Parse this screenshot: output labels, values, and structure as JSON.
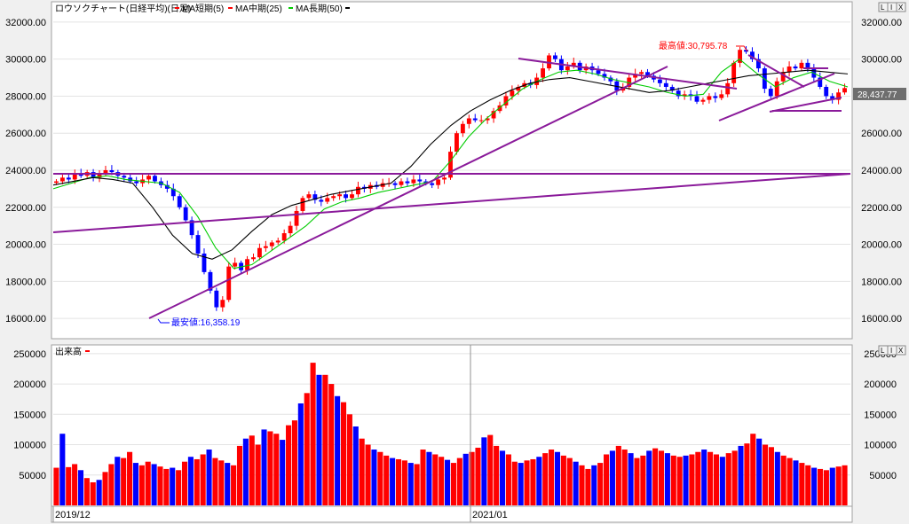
{
  "price_panel": {
    "title": "ロウソクチャート(日経平均)(日足)",
    "legend": [
      {
        "label": "MA短期(5)",
        "color": "#ff0000"
      },
      {
        "label": "MA中期(25)",
        "color": "#ff0000"
      },
      {
        "label": "MA長期(50)",
        "color": "#00cc00"
      },
      {
        "label": "",
        "color": "#000000"
      }
    ],
    "buttons": [
      "L",
      "I",
      "X"
    ],
    "current_price": "28,437.77",
    "high_label": "最高値:30,795.78",
    "low_label": "最安値:16,358.19"
  },
  "volume_panel": {
    "title": "出来高",
    "buttons": [
      "L",
      "I",
      "X"
    ]
  },
  "x_axis": {
    "labels": [
      "2019/12",
      "2021/01"
    ]
  },
  "colors": {
    "up": "#ff0000",
    "down": "#0000ff",
    "ma_short": "#ff0000",
    "ma_mid": "#00cc00",
    "ma_long": "#000000",
    "trendline": "#8a1a9a"
  },
  "chart_data": [
    {
      "type": "candlestick",
      "title": "ロウソクチャート(日経平均)(日足)",
      "ylim": [
        15000,
        33000
      ],
      "yticks": [
        "32000.00",
        "30000.00",
        "28000.00",
        "26000.00",
        "24000.00",
        "22000.00",
        "20000.00",
        "18000.00",
        "16000.00"
      ],
      "ytick_values": [
        32000,
        30000,
        28000,
        26000,
        24000,
        22000,
        20000,
        18000,
        16000
      ],
      "x_start": "2019/12",
      "x_marker": "2021/01",
      "close_series_approx": [
        23400,
        23600,
        23500,
        23800,
        23700,
        23900,
        23600,
        23800,
        24000,
        23900,
        23700,
        23600,
        23400,
        23300,
        23500,
        23700,
        23400,
        23200,
        23000,
        22600,
        22000,
        21300,
        20500,
        19500,
        18500,
        17500,
        16600,
        17000,
        18800,
        19000,
        18600,
        19200,
        19300,
        19800,
        19900,
        20100,
        20200,
        20600,
        21000,
        21800,
        22500,
        22700,
        22400,
        22300,
        22500,
        22600,
        22700,
        22500,
        22700,
        23100,
        23000,
        23200,
        23100,
        23300,
        23300,
        23200,
        23400,
        23300,
        23500,
        23400,
        23300,
        23200,
        23500,
        23600,
        25000,
        26000,
        26500,
        26800,
        26700,
        26700,
        26800,
        27200,
        27500,
        28000,
        28300,
        28500,
        28700,
        28600,
        29000,
        29500,
        30200,
        30000,
        29400,
        29600,
        29800,
        29400,
        29600,
        29400,
        29200,
        29000,
        28800,
        28300,
        28500,
        29000,
        29200,
        29300,
        29100,
        28900,
        28700,
        28500,
        28300,
        28000,
        28100,
        28000,
        27700,
        27800,
        28000,
        27900,
        28100,
        28700,
        29800,
        30500,
        30400,
        30000,
        29500,
        28400,
        28000,
        28800,
        29300,
        29600,
        29500,
        29800,
        29500,
        29000,
        28500,
        28000,
        27800,
        28200,
        28437
      ],
      "ma_mid_series_approx": [
        23000,
        23300,
        23600,
        23700,
        23500,
        23400,
        23300,
        22800,
        21500,
        19800,
        18700,
        18900,
        19600,
        20300,
        21000,
        21900,
        22300,
        22500,
        22800,
        23000,
        23200,
        23400,
        24500,
        25800,
        26800,
        27600,
        28400,
        28900,
        29300,
        29400,
        29200,
        28900,
        28700,
        28500,
        28200,
        28000,
        28100,
        29300,
        30000,
        29200,
        28500,
        29000,
        29300,
        28800,
        28500
      ],
      "ma_long_series_approx": [
        23200,
        23400,
        23600,
        23500,
        23300,
        22000,
        20500,
        19500,
        19200,
        19700,
        20700,
        21600,
        22100,
        22400,
        22700,
        22900,
        23100,
        23300,
        24200,
        25400,
        26400,
        27200,
        27800,
        28300,
        28700,
        28900,
        29000,
        28800,
        28600,
        28400,
        28200,
        28300,
        28500,
        28700,
        28900,
        29100,
        29200,
        29300,
        29400,
        29300,
        29200
      ],
      "annotations": [
        {
          "text": "最高値:30,795.78",
          "value": 30795.78
        },
        {
          "text": "最安値:16,358.19",
          "value": 16358.19
        },
        {
          "text": "28,437.77",
          "value": 28437.77
        }
      ]
    },
    {
      "type": "bar",
      "title": "出来高",
      "ylim": [
        0,
        260000
      ],
      "yticks": [
        "250000",
        "200000",
        "150000",
        "100000",
        "50000"
      ],
      "ytick_values": [
        250000,
        200000,
        150000,
        100000,
        50000
      ],
      "values_approx": [
        62000,
        118000,
        63000,
        68000,
        58000,
        45000,
        38000,
        42000,
        55000,
        68000,
        80000,
        78000,
        88000,
        70000,
        66000,
        72000,
        68000,
        64000,
        60000,
        62000,
        58000,
        72000,
        80000,
        76000,
        84000,
        92000,
        78000,
        74000,
        70000,
        66000,
        98000,
        110000,
        115000,
        100000,
        125000,
        122000,
        118000,
        108000,
        132000,
        140000,
        168000,
        185000,
        235000,
        215000,
        215000,
        200000,
        180000,
        170000,
        150000,
        130000,
        110000,
        100000,
        92000,
        88000,
        82000,
        78000,
        76000,
        74000,
        70000,
        68000,
        92000,
        88000,
        84000,
        80000,
        75000,
        70000,
        78000,
        85000,
        88000,
        95000,
        112000,
        116000,
        98000,
        90000,
        84000,
        72000,
        70000,
        74000,
        76000,
        80000,
        86000,
        92000,
        88000,
        82000,
        78000,
        72000,
        66000,
        60000,
        66000,
        70000,
        84000,
        90000,
        98000,
        92000,
        86000,
        78000,
        82000,
        90000,
        94000,
        90000,
        86000,
        82000,
        80000,
        82000,
        84000,
        88000,
        92000,
        88000,
        84000,
        80000,
        86000,
        90000,
        98000,
        102000,
        118000,
        110000,
        100000,
        96000,
        88000,
        82000,
        78000,
        74000,
        70000,
        66000,
        62000,
        60000,
        58000,
        62000,
        64000,
        66000
      ]
    }
  ]
}
